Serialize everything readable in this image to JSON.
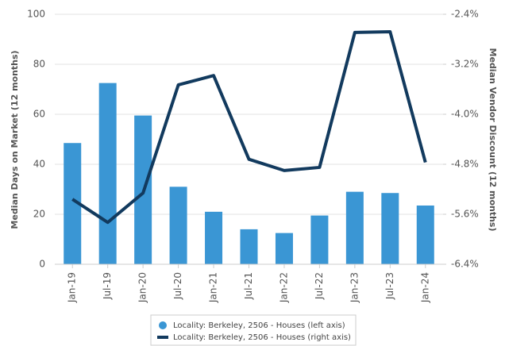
{
  "chart_data": {
    "type": "bar-line",
    "y_label": "Median Days on Market (12 months)",
    "y2_label": "Median Vendor Discount (12 months)",
    "categories": [
      "Jan-19",
      "Jul-19",
      "Jan-20",
      "Jul-20",
      "Jan-21",
      "Jul-21",
      "Jan-22",
      "Jul-22",
      "Jan-23",
      "Jul-23",
      "Jan-24"
    ],
    "series": [
      {
        "name": "Locality: Berkeley, 2506 - Houses (left axis)",
        "type": "bar",
        "color": "#3a96d4",
        "values": [
          48.5,
          72.5,
          59.5,
          31,
          21,
          14,
          12.5,
          19.5,
          29,
          28.5,
          23.5
        ]
      },
      {
        "name": "Locality: Berkeley, 2506 - Houses (right axis)",
        "type": "line",
        "axis": "y2",
        "color": "#123a5e",
        "values": [
          -5.36,
          -5.73,
          -5.26,
          -3.53,
          -3.38,
          -4.72,
          -4.9,
          -4.85,
          -2.69,
          -2.68,
          -4.77
        ]
      }
    ],
    "ylim": [
      0,
      100
    ],
    "yticks": [
      0,
      20,
      40,
      60,
      80,
      100
    ],
    "y2lim": [
      -6.4,
      -2.4
    ],
    "y2ticks": [
      {
        "value": -6.4,
        "label": "-6.4%"
      },
      {
        "value": -5.6,
        "label": "-5.6%"
      },
      {
        "value": -4.8,
        "label": "-4.8%"
      },
      {
        "value": -4.0,
        "label": "-4.0%"
      },
      {
        "value": -3.2,
        "label": "-3.2%"
      },
      {
        "value": -2.4,
        "label": "-2.4%"
      }
    ],
    "grid": true,
    "legend": "bottom"
  }
}
